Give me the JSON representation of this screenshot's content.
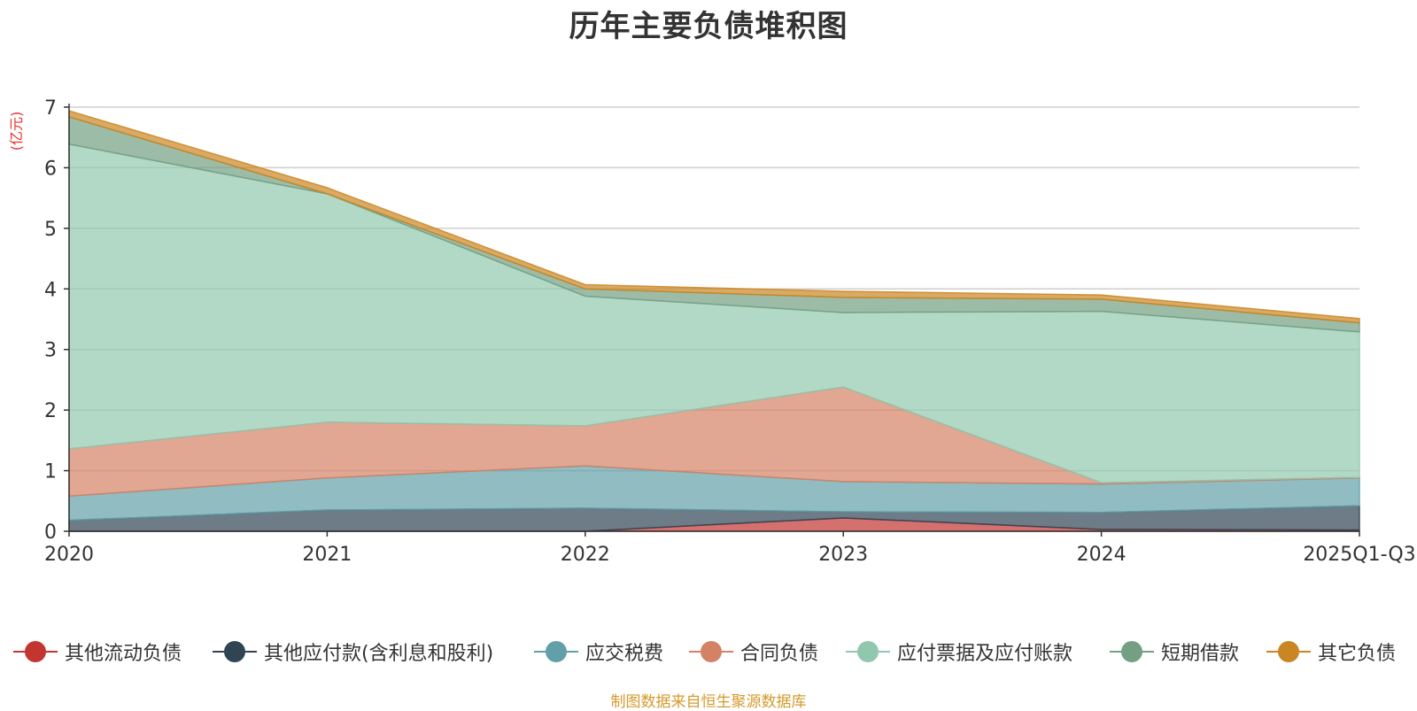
{
  "chart_data": {
    "type": "area",
    "title": "历年主要负债堆积图",
    "ylabel": "(亿元)",
    "xlabel": "",
    "stacked": true,
    "categories": [
      "2020",
      "2021",
      "2022",
      "2023",
      "2024",
      "2025Q1-Q3"
    ],
    "ylim": [
      0,
      7
    ],
    "yticks": [
      0,
      1,
      2,
      3,
      4,
      5,
      6,
      7
    ],
    "grid": true,
    "legend_position": "bottom",
    "series": [
      {
        "name": "其他流动负债",
        "color": "#c23531",
        "values": [
          0.0,
          0.0,
          0.0,
          0.22,
          0.03,
          0.02
        ]
      },
      {
        "name": "其他应付款(含利息和股利)",
        "color": "#2f4554",
        "values": [
          0.18,
          0.35,
          0.38,
          0.1,
          0.28,
          0.4
        ]
      },
      {
        "name": "应交税费",
        "color": "#61a0a8",
        "values": [
          0.4,
          0.53,
          0.7,
          0.5,
          0.47,
          0.46
        ]
      },
      {
        "name": "合同负债",
        "color": "#d48265",
        "values": [
          0.78,
          0.92,
          0.66,
          1.56,
          0.02,
          0.01
        ]
      },
      {
        "name": "应付票据及应付账款",
        "color": "#91c7ae",
        "values": [
          5.03,
          3.77,
          2.14,
          1.23,
          2.83,
          2.4
        ]
      },
      {
        "name": "短期借款",
        "color": "#749f83",
        "values": [
          0.45,
          0.0,
          0.12,
          0.25,
          0.2,
          0.15
        ]
      },
      {
        "name": "其它负债",
        "color": "#ca8622",
        "values": [
          0.1,
          0.1,
          0.07,
          0.1,
          0.07,
          0.07
        ]
      }
    ]
  },
  "source_note": "制图数据来自恒生聚源数据库"
}
